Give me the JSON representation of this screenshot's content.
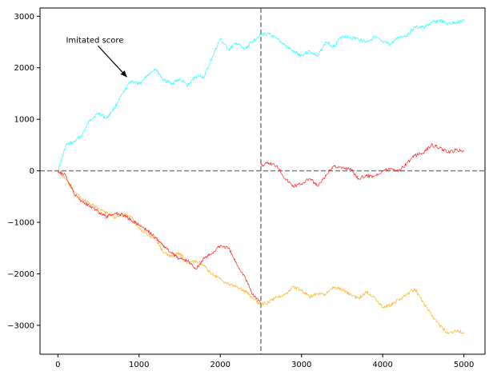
{
  "chart_data": {
    "type": "line",
    "title": "",
    "xlabel": "",
    "ylabel": "",
    "xlim": [
      -220,
      5260
    ],
    "ylim": [
      -3560,
      3160
    ],
    "x_ticks": [
      0,
      1000,
      2000,
      3000,
      4000,
      5000
    ],
    "y_ticks": [
      -3000,
      -2000,
      -1000,
      0,
      1000,
      2000,
      3000
    ],
    "x_tick_labels": [
      "0",
      "1000",
      "2000",
      "3000",
      "4000",
      "5000"
    ],
    "y_tick_labels": [
      "−3000",
      "−2000",
      "−1000",
      "0",
      "1000",
      "2000",
      "3000"
    ],
    "grid": false,
    "reference_lines": {
      "vertical_x": 2500,
      "horizontal_y": 0,
      "style": "dashed",
      "color": "#808080"
    },
    "series": [
      {
        "color": "#00ffff",
        "x": [
          0,
          100,
          200,
          300,
          400,
          500,
          600,
          700,
          800,
          900,
          1000,
          1100,
          1200,
          1300,
          1400,
          1500,
          1600,
          1700,
          1800,
          1900,
          2000,
          2100,
          2200,
          2300,
          2400,
          2500,
          2600,
          2700,
          2800,
          2900,
          3000,
          3100,
          3200,
          3300,
          3400,
          3500,
          3600,
          3700,
          3800,
          3900,
          4000,
          4100,
          4200,
          4300,
          4400,
          4500,
          4600,
          4700,
          4800,
          4900,
          5000
        ],
        "y": [
          0,
          500,
          560,
          700,
          1000,
          1120,
          1020,
          1230,
          1500,
          1750,
          1680,
          1850,
          1990,
          1760,
          1700,
          1780,
          1650,
          1840,
          1820,
          2200,
          2560,
          2350,
          2480,
          2350,
          2520,
          2650,
          2650,
          2550,
          2440,
          2310,
          2240,
          2320,
          2220,
          2500,
          2410,
          2620,
          2590,
          2560,
          2500,
          2600,
          2490,
          2460,
          2600,
          2630,
          2790,
          2780,
          2870,
          2920,
          2850,
          2880,
          2920
        ]
      },
      {
        "color": "#ffa500",
        "x": [
          0,
          100,
          200,
          300,
          400,
          500,
          600,
          700,
          800,
          900,
          1000,
          1100,
          1200,
          1300,
          1400,
          1500,
          1600,
          1700,
          1800,
          1900,
          2000,
          2100,
          2200,
          2300,
          2400,
          2500,
          2600,
          2700,
          2800,
          2900,
          3000,
          3100,
          3200,
          3300,
          3400,
          3500,
          3600,
          3700,
          3800,
          3900,
          4000,
          4100,
          4200,
          4300,
          4400,
          4500,
          4600,
          4700,
          4800,
          4900,
          5000
        ],
        "y": [
          0,
          -180,
          -400,
          -550,
          -650,
          -720,
          -820,
          -900,
          -850,
          -900,
          -1100,
          -1250,
          -1300,
          -1600,
          -1650,
          -1600,
          -1800,
          -1750,
          -1850,
          -2000,
          -2100,
          -2200,
          -2250,
          -2330,
          -2480,
          -2600,
          -2550,
          -2450,
          -2400,
          -2250,
          -2320,
          -2450,
          -2380,
          -2400,
          -2250,
          -2300,
          -2400,
          -2480,
          -2350,
          -2450,
          -2650,
          -2600,
          -2500,
          -2400,
          -2300,
          -2550,
          -2800,
          -3000,
          -3150,
          -3100,
          -3150
        ]
      },
      {
        "color": "#ff0000",
        "x": [
          0,
          100,
          200,
          300,
          400,
          500,
          600,
          700,
          800,
          900,
          1000,
          1100,
          1200,
          1300,
          1400,
          1500,
          1600,
          1700,
          1800,
          1900,
          2000,
          2100,
          2200,
          2300,
          2400,
          2500,
          2500,
          2600,
          2700,
          2800,
          2900,
          3000,
          3100,
          3200,
          3300,
          3400,
          3500,
          3600,
          3700,
          3800,
          3900,
          4000,
          4100,
          4200,
          4300,
          4400,
          4500,
          4600,
          4700,
          4800,
          4900,
          5000
        ],
        "y": [
          0,
          -100,
          -450,
          -600,
          -680,
          -800,
          -900,
          -820,
          -850,
          -950,
          -1050,
          -1150,
          -1300,
          -1450,
          -1600,
          -1700,
          -1750,
          -1900,
          -1700,
          -1600,
          -1450,
          -1500,
          -1800,
          -2050,
          -2400,
          -2550,
          100,
          150,
          100,
          -150,
          -300,
          -250,
          -150,
          -300,
          -100,
          100,
          50,
          50,
          -150,
          -100,
          -100,
          0,
          50,
          0,
          150,
          300,
          350,
          500,
          450,
          350,
          400,
          380
        ]
      }
    ],
    "annotations": [
      {
        "text": "Imitated score",
        "text_xy": [
          100,
          2550
        ],
        "arrow_to": [
          850,
          1820
        ]
      }
    ]
  }
}
